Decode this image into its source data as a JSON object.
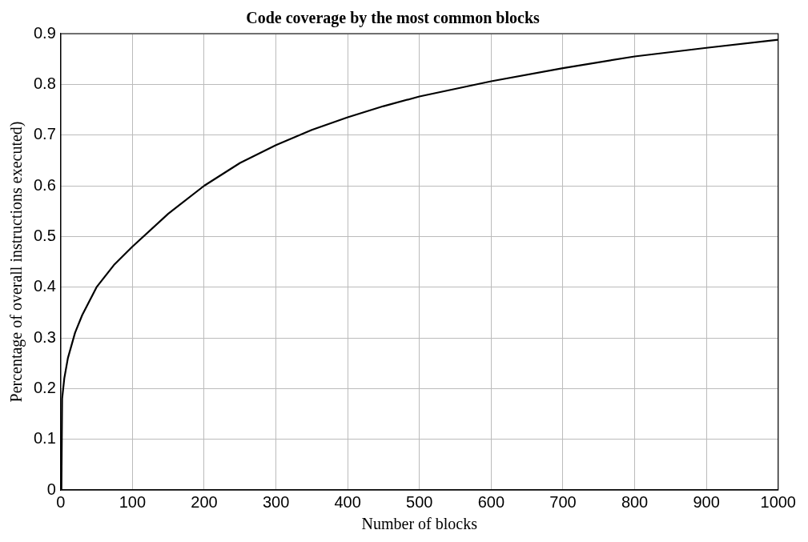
{
  "chart_data": {
    "type": "line",
    "title": "Code coverage by the most common blocks",
    "xlabel": "Number of blocks",
    "ylabel": "Percentage of overall instructions executed)",
    "x": [
      1,
      2,
      5,
      10,
      20,
      30,
      50,
      75,
      100,
      150,
      200,
      250,
      300,
      350,
      400,
      450,
      500,
      600,
      700,
      800,
      900,
      1000
    ],
    "series": [
      {
        "color": "#000000",
        "values": [
          0,
          0.18,
          0.22,
          0.26,
          0.31,
          0.345,
          0.4,
          0.445,
          0.48,
          0.545,
          0.6,
          0.645,
          0.68,
          0.71,
          0.735,
          0.757,
          0.776,
          0.806,
          0.832,
          0.855,
          0.872,
          0.888
        ]
      }
    ],
    "xlim": [
      0,
      1000
    ],
    "xticks": [
      0,
      100,
      200,
      300,
      400,
      500,
      600,
      700,
      800,
      900,
      1000
    ],
    "ylim": [
      0,
      0.9
    ],
    "yticks": [
      0,
      0.1,
      0.2,
      0.3,
      0.4,
      0.5,
      0.6,
      0.7,
      0.8,
      0.9
    ],
    "grid": true,
    "legend": false,
    "marker": "none",
    "line_style": "solid"
  }
}
